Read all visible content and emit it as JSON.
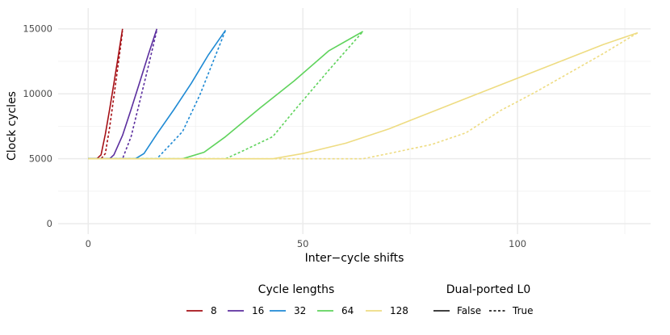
{
  "chart_data": {
    "type": "line",
    "xlabel": "Inter−cycle shifts",
    "ylabel": "Clock cycles",
    "xlim": [
      -7,
      131
    ],
    "ylim": [
      -800,
      16600
    ],
    "x_ticks": [
      0,
      50,
      100
    ],
    "x_tick_labels": [
      "0",
      "50",
      "100"
    ],
    "y_ticks": [
      0,
      5000,
      10000,
      15000
    ],
    "y_tick_labels": [
      "0",
      "5000",
      "10000",
      "15000"
    ],
    "grid": true,
    "legend_position": "bottom",
    "legends": [
      {
        "title": "Cycle lengths",
        "entries": [
          {
            "label": "8",
            "color": "#A50F15"
          },
          {
            "label": "16",
            "color": "#5B2E9E"
          },
          {
            "label": "32",
            "color": "#1F8AD4"
          },
          {
            "label": "64",
            "color": "#5FD35C"
          },
          {
            "label": "128",
            "color": "#EEDC82"
          }
        ]
      },
      {
        "title": "Dual-ported L0",
        "entries": [
          {
            "label": "False",
            "dash": "solid"
          },
          {
            "label": "True",
            "dash": "dashed"
          }
        ]
      }
    ],
    "series": [
      {
        "cycle_length": "8",
        "dual_ported": "False",
        "color": "#A50F15",
        "x": [
          0,
          2,
          3,
          4,
          5,
          6,
          7,
          8
        ],
        "y": [
          5000,
          5000,
          5300,
          6900,
          8800,
          10800,
          12900,
          15000
        ]
      },
      {
        "cycle_length": "8",
        "dual_ported": "True",
        "color": "#A50F15",
        "x": [
          0,
          3,
          4,
          5,
          6,
          7,
          8
        ],
        "y": [
          5000,
          5000,
          5400,
          7400,
          9800,
          12300,
          14800
        ]
      },
      {
        "cycle_length": "16",
        "dual_ported": "False",
        "color": "#5B2E9E",
        "x": [
          0,
          5,
          6,
          8,
          10,
          12,
          14,
          16
        ],
        "y": [
          5000,
          5000,
          5300,
          6800,
          8800,
          10900,
          13000,
          15000
        ]
      },
      {
        "cycle_length": "16",
        "dual_ported": "True",
        "color": "#5B2E9E",
        "x": [
          0,
          8,
          10,
          12,
          14,
          16
        ],
        "y": [
          5000,
          5000,
          6700,
          9400,
          12100,
          14900
        ]
      },
      {
        "cycle_length": "32",
        "dual_ported": "False",
        "color": "#1F8AD4",
        "x": [
          0,
          11,
          13,
          16,
          20,
          24,
          28,
          32
        ],
        "y": [
          5000,
          5000,
          5400,
          6900,
          8800,
          10800,
          13000,
          14900
        ]
      },
      {
        "cycle_length": "32",
        "dual_ported": "True",
        "color": "#1F8AD4",
        "x": [
          0,
          16,
          18,
          22,
          26,
          29,
          32
        ],
        "y": [
          5000,
          5000,
          5700,
          7100,
          9900,
          12400,
          14900
        ]
      },
      {
        "cycle_length": "64",
        "dual_ported": "False",
        "color": "#5FD35C",
        "x": [
          0,
          22,
          27,
          32,
          40,
          48,
          56,
          64
        ],
        "y": [
          5000,
          5000,
          5500,
          6700,
          8900,
          11000,
          13300,
          14800
        ]
      },
      {
        "cycle_length": "64",
        "dual_ported": "True",
        "color": "#5FD35C",
        "x": [
          0,
          32,
          36,
          43,
          48,
          56,
          64
        ],
        "y": [
          5000,
          5000,
          5600,
          6700,
          8700,
          11800,
          14800
        ]
      },
      {
        "cycle_length": "128",
        "dual_ported": "False",
        "color": "#EEDC82",
        "x": [
          0,
          43,
          50,
          60,
          70,
          80,
          90,
          100,
          110,
          120,
          128
        ],
        "y": [
          5000,
          5000,
          5400,
          6200,
          7300,
          8600,
          9900,
          11200,
          12500,
          13800,
          14700
        ]
      },
      {
        "cycle_length": "128",
        "dual_ported": "True",
        "color": "#EEDC82",
        "x": [
          0,
          64,
          70,
          80,
          88,
          96,
          104,
          112,
          120,
          128
        ],
        "y": [
          5000,
          5000,
          5400,
          6100,
          7000,
          8700,
          10100,
          11600,
          13100,
          14700
        ]
      }
    ]
  }
}
